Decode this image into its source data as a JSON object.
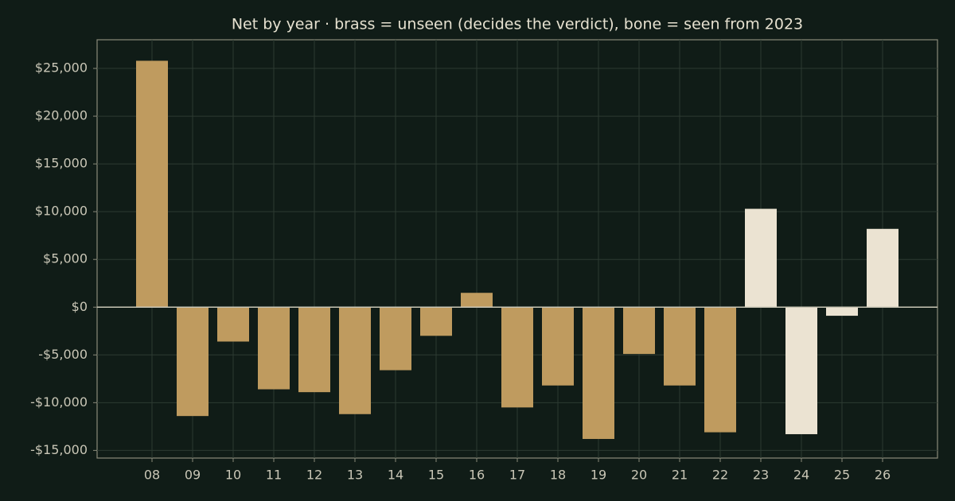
{
  "chart_data": {
    "type": "bar",
    "title": "Net by year  ·  brass = unseen (decides the verdict), bone = seen from 2023",
    "categories": [
      "08",
      "09",
      "10",
      "11",
      "12",
      "13",
      "14",
      "15",
      "16",
      "17",
      "18",
      "19",
      "20",
      "21",
      "22",
      "23",
      "24",
      "25",
      "26"
    ],
    "values": [
      25800,
      -11400,
      -3600,
      -8600,
      -8900,
      -11200,
      -6600,
      -3000,
      1500,
      -10500,
      -8200,
      -13800,
      -4900,
      -8200,
      -13100,
      10300,
      -13300,
      -900,
      8200
    ],
    "colors": [
      "#bf9b5f",
      "#bf9b5f",
      "#bf9b5f",
      "#bf9b5f",
      "#bf9b5f",
      "#bf9b5f",
      "#bf9b5f",
      "#bf9b5f",
      "#bf9b5f",
      "#bf9b5f",
      "#bf9b5f",
      "#bf9b5f",
      "#bf9b5f",
      "#bf9b5f",
      "#bf9b5f",
      "#ebe3d2",
      "#ebe3d2",
      "#ebe3d2",
      "#ebe3d2"
    ],
    "ylim": [
      -15800,
      28000
    ],
    "yticks": [
      {
        "value": -15000,
        "label": "-$15,000"
      },
      {
        "value": -10000,
        "label": "-$10,000"
      },
      {
        "value": -5000,
        "label": "-$5,000"
      },
      {
        "value": 0,
        "label": "$0"
      },
      {
        "value": 5000,
        "label": "$5,000"
      },
      {
        "value": 10000,
        "label": "$10,000"
      },
      {
        "value": 15000,
        "label": "$15,000"
      },
      {
        "value": 20000,
        "label": "$20,000"
      },
      {
        "value": 25000,
        "label": "$25,000"
      }
    ],
    "grid": true
  }
}
